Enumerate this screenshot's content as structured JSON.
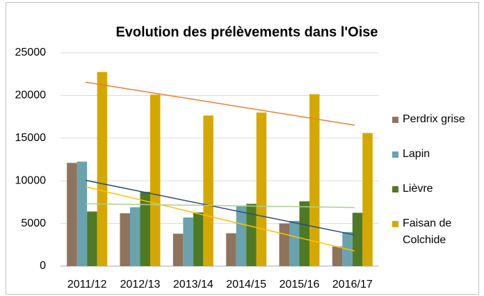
{
  "chart_data": {
    "type": "bar",
    "title": "Evolution des prélèvements dans l'Oise",
    "categories": [
      "2011/12",
      "2012/13",
      "2013/14",
      "2014/15",
      "2015/16",
      "2016/17"
    ],
    "series": [
      {
        "name": "Perdrix grise",
        "color": "#8f735c",
        "trendline_color": "#ffc000",
        "values": [
          12100,
          6200,
          3800,
          3850,
          5000,
          2300
        ]
      },
      {
        "name": "Lapin",
        "color": "#6aa3ad",
        "trendline_color": "#2a4a7f",
        "values": [
          12250,
          6900,
          5700,
          7000,
          5300,
          4000
        ]
      },
      {
        "name": "Lièvre",
        "color": "#4e7a26",
        "trendline_color": "#a9d18e",
        "values": [
          6400,
          8700,
          6300,
          7300,
          7600,
          6250
        ]
      },
      {
        "name": "Faisan de Colchide",
        "color": "#d5a800",
        "trendline_color": "#ed7d31",
        "values": [
          22750,
          20100,
          17650,
          18000,
          20150,
          15600
        ]
      }
    ],
    "trendlines": true,
    "ylim": [
      0,
      25000
    ],
    "yticks": [
      0,
      5000,
      10000,
      15000,
      20000,
      25000
    ],
    "grid": true,
    "legend": "right"
  }
}
